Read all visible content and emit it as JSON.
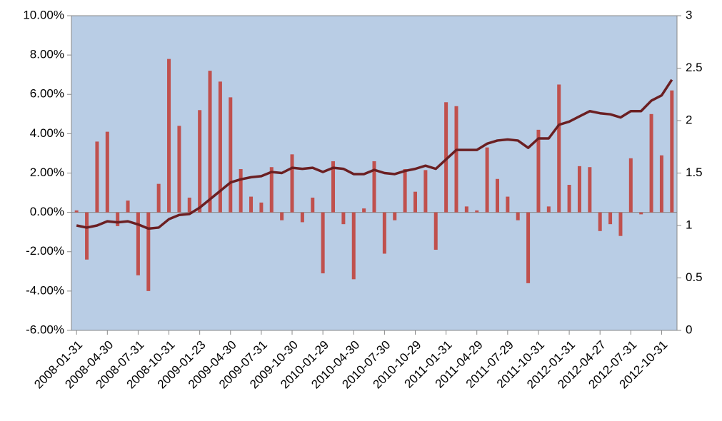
{
  "chart_data": {
    "type": "bar-line",
    "categories": [
      "2008-01-31",
      null,
      null,
      "2008-04-30",
      null,
      null,
      "2008-07-31",
      null,
      null,
      "2008-10-31",
      null,
      null,
      "2009-01-23",
      null,
      null,
      "2009-04-30",
      null,
      null,
      "2009-07-31",
      null,
      null,
      "2009-10-30",
      null,
      null,
      "2010-01-29",
      null,
      null,
      "2010-04-30",
      null,
      null,
      "2010-07-30",
      null,
      null,
      "2010-10-29",
      null,
      null,
      "2011-01-31",
      null,
      null,
      "2011-04-29",
      null,
      null,
      "2011-07-29",
      null,
      null,
      "2011-10-31",
      null,
      null,
      "2012-01-31",
      null,
      null,
      "2012-04-27",
      null,
      null,
      "2012-07-31",
      null,
      null,
      "2012-10-31",
      null
    ],
    "series": [
      {
        "type": "bar",
        "color": "#c0504d",
        "values": [
          0.1,
          -2.4,
          3.6,
          4.1,
          -0.7,
          0.6,
          -3.2,
          -4.0,
          1.45,
          7.8,
          4.4,
          0.75,
          5.2,
          7.2,
          6.65,
          5.85,
          2.2,
          0.8,
          0.5,
          2.3,
          -0.4,
          2.95,
          -0.5,
          0.75,
          -3.1,
          2.6,
          -0.6,
          -3.4,
          0.2,
          2.6,
          -2.1,
          -0.4,
          2.2,
          1.05,
          2.15,
          -1.9,
          5.6,
          5.4,
          0.3,
          0.1,
          3.3,
          1.7,
          0.8,
          -0.4,
          -3.6,
          4.2,
          0.3,
          6.5,
          1.4,
          2.35,
          2.3,
          -0.95,
          -0.6,
          -1.2,
          2.75,
          -0.1,
          5.0,
          2.9,
          6.2
        ]
      },
      {
        "type": "line",
        "axis": "y2",
        "color": "#6b1f22",
        "values": [
          1.0,
          0.98,
          1.0,
          1.04,
          1.03,
          1.04,
          1.01,
          0.97,
          0.98,
          1.06,
          1.1,
          1.11,
          1.17,
          1.25,
          1.33,
          1.41,
          1.44,
          1.46,
          1.47,
          1.51,
          1.5,
          1.55,
          1.54,
          1.55,
          1.51,
          1.55,
          1.54,
          1.49,
          1.49,
          1.53,
          1.5,
          1.49,
          1.52,
          1.54,
          1.57,
          1.54,
          1.63,
          1.72,
          1.72,
          1.72,
          1.78,
          1.81,
          1.82,
          1.81,
          1.74,
          1.83,
          1.83,
          1.96,
          1.99,
          2.04,
          2.09,
          2.07,
          2.06,
          2.03,
          2.09,
          2.09,
          2.19,
          2.24,
          2.39
        ]
      }
    ],
    "ylim": [
      -6,
      10
    ],
    "yticks": [
      {
        "value": -6,
        "label": "-6.00%"
      },
      {
        "value": -4,
        "label": "-4.00%"
      },
      {
        "value": -2,
        "label": "-2.00%"
      },
      {
        "value": 0,
        "label": "0.00%"
      },
      {
        "value": 2,
        "label": "2.00%"
      },
      {
        "value": 4,
        "label": "4.00%"
      },
      {
        "value": 6,
        "label": "6.00%"
      },
      {
        "value": 8,
        "label": "8.00%"
      },
      {
        "value": 10,
        "label": "10.00%"
      }
    ],
    "y2lim": [
      0,
      3
    ],
    "y2ticks": [
      0,
      0.5,
      1,
      1.5,
      2,
      2.5,
      3
    ],
    "plot_background": "#b9cde5"
  }
}
